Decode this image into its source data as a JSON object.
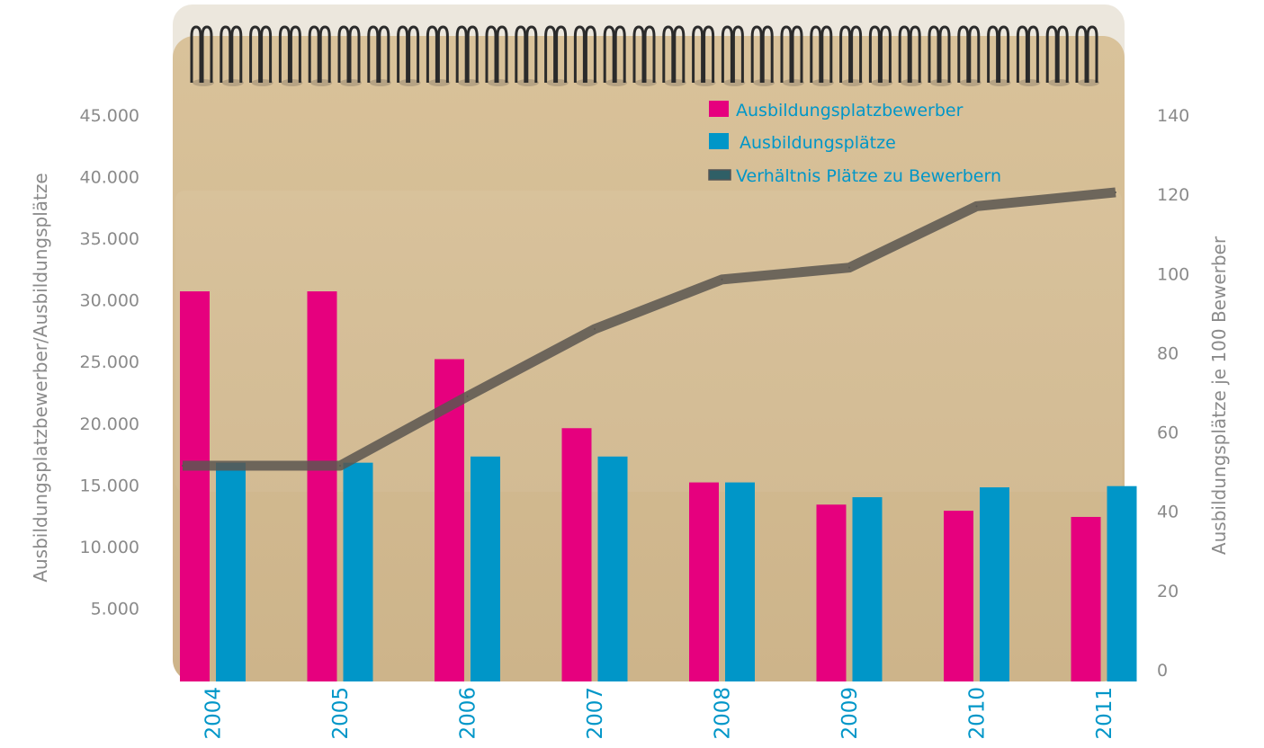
{
  "chart_data": {
    "type": "bar",
    "title": "",
    "categories": [
      "2004",
      "2005",
      "2006",
      "2007",
      "2008",
      "2009",
      "2010",
      "2011"
    ],
    "series": [
      {
        "name": "Ausbildungsplatzbewerber",
        "type": "bar",
        "axis": "left",
        "color": "#e6007e",
        "values": [
          30700,
          30700,
          25200,
          19600,
          15200,
          13400,
          12900,
          12400
        ]
      },
      {
        "name": "Ausbildungsplätze",
        "type": "bar",
        "axis": "left",
        "color": "#0096c8",
        "values": [
          16800,
          16800,
          17300,
          17300,
          15200,
          14000,
          14800,
          14900
        ]
      },
      {
        "name": "Verhältnis Plätze zu Bewerbern",
        "type": "line",
        "axis": "right",
        "color": "#5a5650",
        "values": [
          51.5,
          51.5,
          69,
          86,
          98.5,
          101.5,
          117,
          120.5
        ]
      }
    ],
    "ylabel": "Ausbildungsplatzbewerber/Ausbildungsplätze",
    "ylabel_right": "Ausbildungsplätze je 100 Bewerber",
    "ylim": [
      0,
      45000
    ],
    "ylim_right": [
      0,
      140
    ],
    "yticks": [
      "5.000",
      "10.000",
      "15.000",
      "20.000",
      "25.000",
      "30.000",
      "35.000",
      "40.000",
      "45.000"
    ],
    "yticks_right": [
      "0",
      "20",
      "40",
      "60",
      "80",
      "100",
      "120",
      "140"
    ],
    "legend": "top-right",
    "grid": false
  }
}
